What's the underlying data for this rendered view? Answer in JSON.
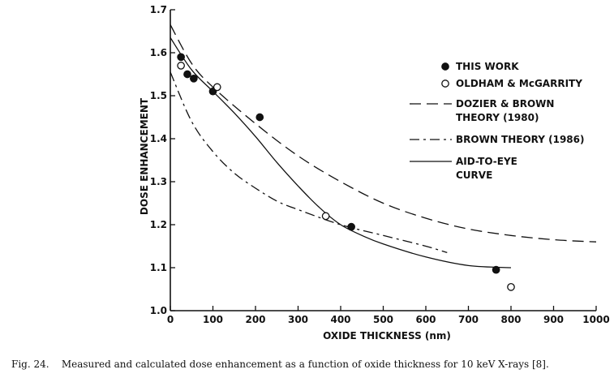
{
  "chart_data": {
    "type": "line",
    "xlabel": "OXIDE THICKNESS (nm)",
    "ylabel": "DOSE ENHANCEMENT",
    "xlim": [
      0,
      1000
    ],
    "ylim": [
      1.0,
      1.7
    ],
    "x_ticks": [
      "0",
      "100",
      "200",
      "300",
      "400",
      "500",
      "600",
      "700",
      "800",
      "900",
      "1000"
    ],
    "y_ticks": [
      "1.0",
      "1.1",
      "1.2",
      "1.3",
      "1.4",
      "1.5",
      "1.6",
      "1.7"
    ],
    "legend_position": "top-right",
    "series": [
      {
        "name": "THIS WORK",
        "style": "filled-circle",
        "x": [
          25,
          40,
          55,
          100,
          210,
          425,
          765
        ],
        "y": [
          1.59,
          1.55,
          1.54,
          1.51,
          1.45,
          1.195,
          1.095
        ]
      },
      {
        "name": "OLDHAM & McGARRITY",
        "style": "open-circle",
        "x": [
          25,
          110,
          365,
          800
        ],
        "y": [
          1.57,
          1.52,
          1.22,
          1.055
        ]
      },
      {
        "name": "DOZIER & BROWN THEORY (1980)",
        "style": "dashed",
        "x": [
          0,
          50,
          100,
          200,
          300,
          400,
          500,
          600,
          700,
          800,
          900,
          1000
        ],
        "y": [
          1.665,
          1.575,
          1.52,
          1.435,
          1.36,
          1.3,
          1.25,
          1.215,
          1.19,
          1.175,
          1.165,
          1.16
        ]
      },
      {
        "name": "BROWN THEORY (1986)",
        "style": "dash-dot",
        "x": [
          0,
          50,
          100,
          150,
          200,
          250,
          300,
          400,
          500,
          600,
          650
        ],
        "y": [
          1.555,
          1.44,
          1.37,
          1.32,
          1.285,
          1.255,
          1.235,
          1.2,
          1.175,
          1.15,
          1.135
        ]
      },
      {
        "name": "AID-TO-EYE CURVE",
        "style": "solid",
        "x": [
          0,
          50,
          100,
          150,
          200,
          250,
          300,
          350,
          400,
          450,
          500,
          600,
          700,
          800
        ],
        "y": [
          1.635,
          1.56,
          1.51,
          1.46,
          1.405,
          1.345,
          1.29,
          1.24,
          1.2,
          1.175,
          1.155,
          1.125,
          1.105,
          1.1
        ]
      }
    ]
  },
  "legend": [
    {
      "marker": "filled-circle",
      "lines": [
        "THIS WORK"
      ]
    },
    {
      "marker": "open-circle",
      "lines": [
        "OLDHAM & McGARRITY"
      ]
    },
    {
      "marker": "dashed",
      "lines": [
        "DOZIER & BROWN",
        "THEORY (1980)"
      ]
    },
    {
      "marker": "dash-dot",
      "lines": [
        "BROWN THEORY (1986)"
      ]
    },
    {
      "marker": "solid",
      "lines": [
        "AID-TO-EYE",
        "CURVE"
      ]
    }
  ],
  "caption": "Fig. 24.    Measured and calculated dose enhancement as a function of oxide thickness for 10 keV X-rays [8]."
}
